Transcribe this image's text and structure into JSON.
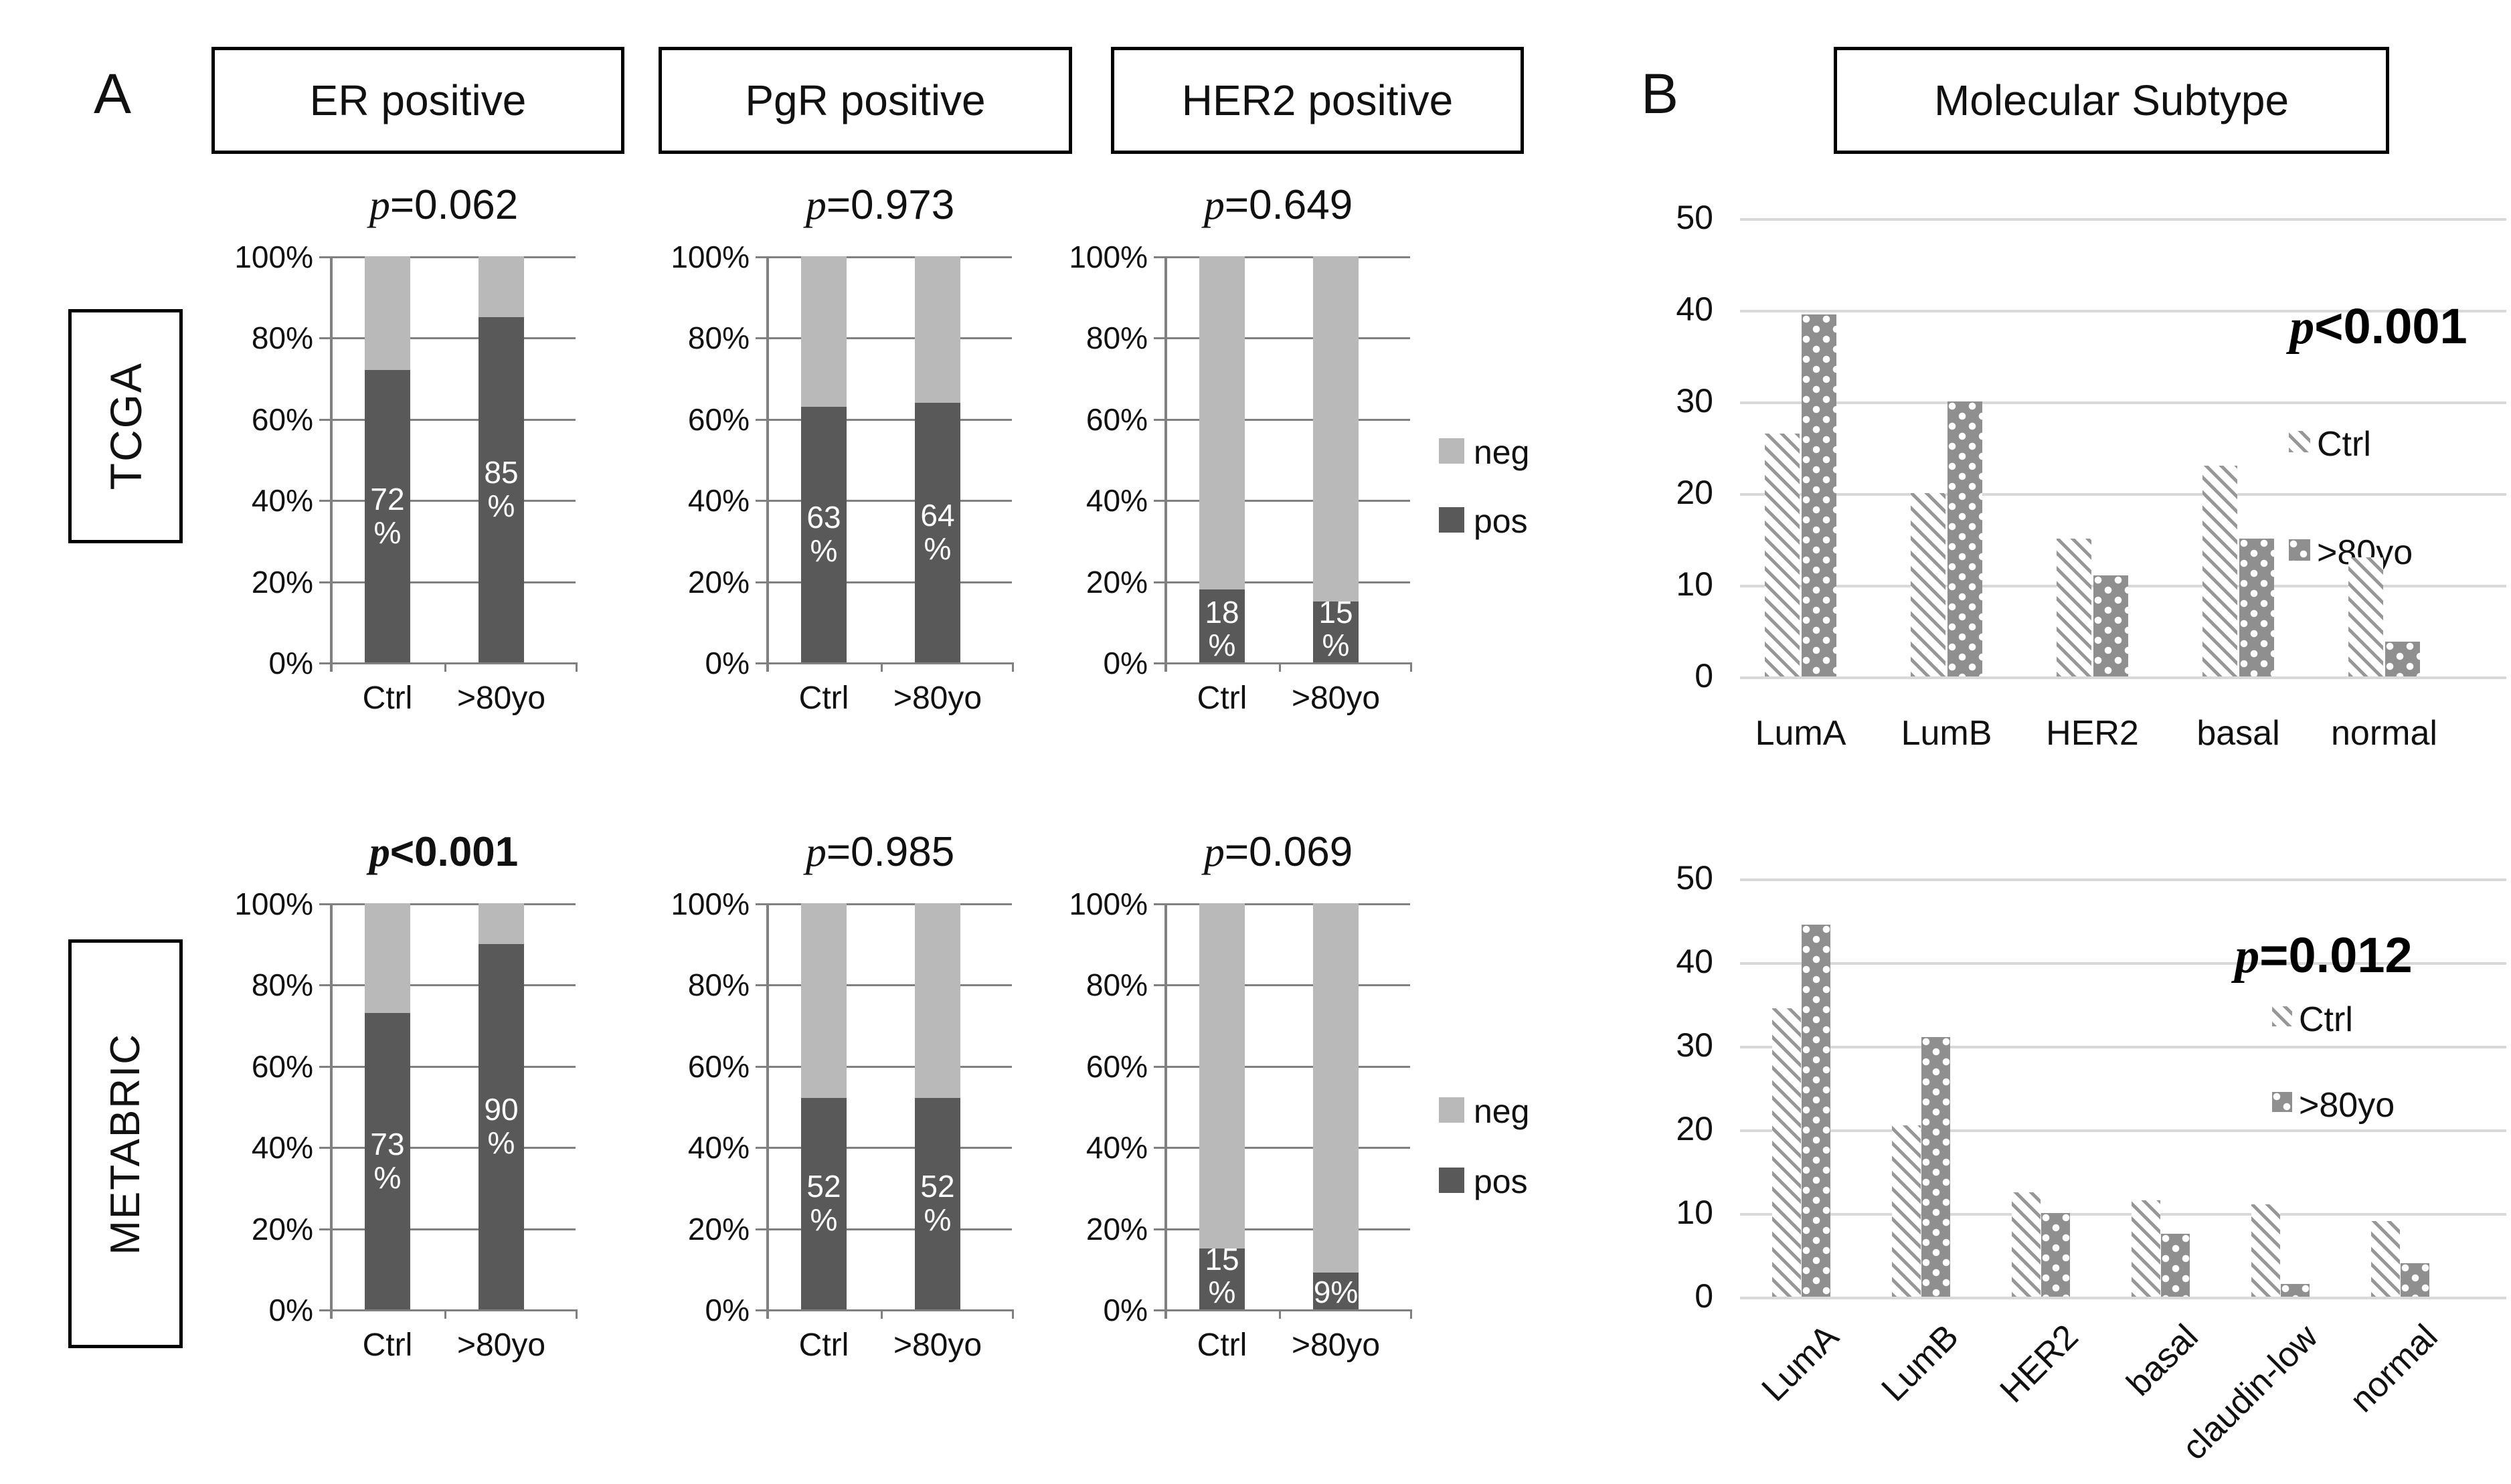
{
  "figure": {
    "panel_a_label": "A",
    "panel_b_label": "B",
    "header_boxes": [
      "ER positive",
      "PgR positive",
      "HER2 positive"
    ],
    "panel_b_title": "Molecular Subtype",
    "row_labels": [
      "TCGA",
      "METABRIC"
    ],
    "stacked_y_ticks": [
      "100%",
      "80%",
      "60%",
      "40%",
      "20%",
      "0%"
    ],
    "stacked_x_ticks": [
      "Ctrl",
      ">80yo"
    ],
    "ab_legend": {
      "neg": "neg",
      "pos": "pos"
    },
    "b_y_ticks": [
      "50",
      "40",
      "30",
      "20",
      "10",
      "0"
    ],
    "b_legend": {
      "ctrl": "Ctrl",
      "over80": ">80yo"
    }
  },
  "chart_data": [
    {
      "id": "tcga_er",
      "type": "bar",
      "stacked": true,
      "row": "TCGA",
      "marker": "ER positive",
      "p_value": "p=0.062",
      "p_bold": false,
      "categories": [
        "Ctrl",
        ">80yo"
      ],
      "ylim": [
        0,
        100
      ],
      "y_ticks": [
        "0%",
        "20%",
        "40%",
        "60%",
        "80%",
        "100%"
      ],
      "series": [
        {
          "name": "pos",
          "values": [
            72,
            85
          ]
        },
        {
          "name": "neg",
          "values": [
            28,
            15
          ]
        }
      ],
      "bar_label_lines": [
        [
          "72",
          "%"
        ],
        [
          "85",
          "%"
        ]
      ],
      "legend": [
        "neg",
        "pos"
      ]
    },
    {
      "id": "tcga_pgr",
      "type": "bar",
      "stacked": true,
      "row": "TCGA",
      "marker": "PgR positive",
      "p_value": "p=0.973",
      "p_bold": false,
      "categories": [
        "Ctrl",
        ">80yo"
      ],
      "ylim": [
        0,
        100
      ],
      "y_ticks": [
        "0%",
        "20%",
        "40%",
        "60%",
        "80%",
        "100%"
      ],
      "series": [
        {
          "name": "pos",
          "values": [
            63,
            64
          ]
        },
        {
          "name": "neg",
          "values": [
            37,
            36
          ]
        }
      ],
      "bar_label_lines": [
        [
          "63",
          "%"
        ],
        [
          "64",
          "%"
        ]
      ],
      "legend": [
        "neg",
        "pos"
      ]
    },
    {
      "id": "tcga_her2",
      "type": "bar",
      "stacked": true,
      "row": "TCGA",
      "marker": "HER2 positive",
      "p_value": "p=0.649",
      "p_bold": false,
      "categories": [
        "Ctrl",
        ">80yo"
      ],
      "ylim": [
        0,
        100
      ],
      "y_ticks": [
        "0%",
        "20%",
        "40%",
        "60%",
        "80%",
        "100%"
      ],
      "series": [
        {
          "name": "pos",
          "values": [
            18,
            15
          ]
        },
        {
          "name": "neg",
          "values": [
            82,
            85
          ]
        }
      ],
      "bar_label_lines": [
        [
          "18",
          "%"
        ],
        [
          "15",
          "%"
        ]
      ],
      "legend": [
        "neg",
        "pos"
      ]
    },
    {
      "id": "metabric_er",
      "type": "bar",
      "stacked": true,
      "row": "METABRIC",
      "marker": "ER positive",
      "p_value": "p<0.001",
      "p_bold": true,
      "categories": [
        "Ctrl",
        ">80yo"
      ],
      "ylim": [
        0,
        100
      ],
      "y_ticks": [
        "0%",
        "20%",
        "40%",
        "60%",
        "80%",
        "100%"
      ],
      "series": [
        {
          "name": "pos",
          "values": [
            73,
            90
          ]
        },
        {
          "name": "neg",
          "values": [
            27,
            10
          ]
        }
      ],
      "bar_label_lines": [
        [
          "73",
          "%"
        ],
        [
          "90",
          "%"
        ]
      ],
      "legend": [
        "neg",
        "pos"
      ]
    },
    {
      "id": "metabric_pgr",
      "type": "bar",
      "stacked": true,
      "row": "METABRIC",
      "marker": "PgR positive",
      "p_value": "p=0.985",
      "p_bold": false,
      "categories": [
        "Ctrl",
        ">80yo"
      ],
      "ylim": [
        0,
        100
      ],
      "y_ticks": [
        "0%",
        "20%",
        "40%",
        "60%",
        "80%",
        "100%"
      ],
      "series": [
        {
          "name": "pos",
          "values": [
            52,
            52
          ]
        },
        {
          "name": "neg",
          "values": [
            48,
            48
          ]
        }
      ],
      "bar_label_lines": [
        [
          "52",
          "%"
        ],
        [
          "52",
          "%"
        ]
      ],
      "legend": [
        "neg",
        "pos"
      ]
    },
    {
      "id": "metabric_her2",
      "type": "bar",
      "stacked": true,
      "row": "METABRIC",
      "marker": "HER2 positive",
      "p_value": "p=0.069",
      "p_bold": false,
      "categories": [
        "Ctrl",
        ">80yo"
      ],
      "ylim": [
        0,
        100
      ],
      "y_ticks": [
        "0%",
        "20%",
        "40%",
        "60%",
        "80%",
        "100%"
      ],
      "series": [
        {
          "name": "pos",
          "values": [
            15,
            9
          ]
        },
        {
          "name": "neg",
          "values": [
            85,
            91
          ]
        }
      ],
      "bar_label_lines": [
        [
          "15",
          "%"
        ],
        [
          "9%"
        ]
      ],
      "legend": [
        "neg",
        "pos"
      ]
    },
    {
      "id": "tcga_subtype",
      "type": "bar",
      "stacked": false,
      "row": "TCGA",
      "title": "Molecular Subtype",
      "p_value": "p<0.001",
      "p_bold": true,
      "categories": [
        "LumA",
        "LumB",
        "HER2",
        "basal",
        "normal"
      ],
      "ylim": [
        0,
        50
      ],
      "y_ticks": [
        0,
        10,
        20,
        30,
        40,
        50
      ],
      "grid": true,
      "legend_position": "right",
      "series": [
        {
          "name": "Ctrl",
          "values": [
            26.5,
            20,
            15,
            23,
            13
          ]
        },
        {
          "name": ">80yo",
          "values": [
            39.5,
            30,
            11,
            15,
            3.8
          ]
        }
      ],
      "rotated_category_labels": false
    },
    {
      "id": "metabric_subtype",
      "type": "bar",
      "stacked": false,
      "row": "METABRIC",
      "title": "Molecular Subtype",
      "p_value": "p=0.012",
      "p_bold": true,
      "categories": [
        "LumA",
        "LumB",
        "HER2",
        "basal",
        "claudin-low",
        "normal"
      ],
      "ylim": [
        0,
        50
      ],
      "y_ticks": [
        0,
        10,
        20,
        30,
        40,
        50
      ],
      "grid": true,
      "legend_position": "right",
      "series": [
        {
          "name": "Ctrl",
          "values": [
            34.5,
            20.5,
            12.5,
            11.5,
            11,
            9
          ]
        },
        {
          "name": ">80yo",
          "values": [
            44.5,
            31,
            10,
            7.5,
            1.5,
            4
          ]
        }
      ],
      "rotated_category_labels": true
    }
  ]
}
